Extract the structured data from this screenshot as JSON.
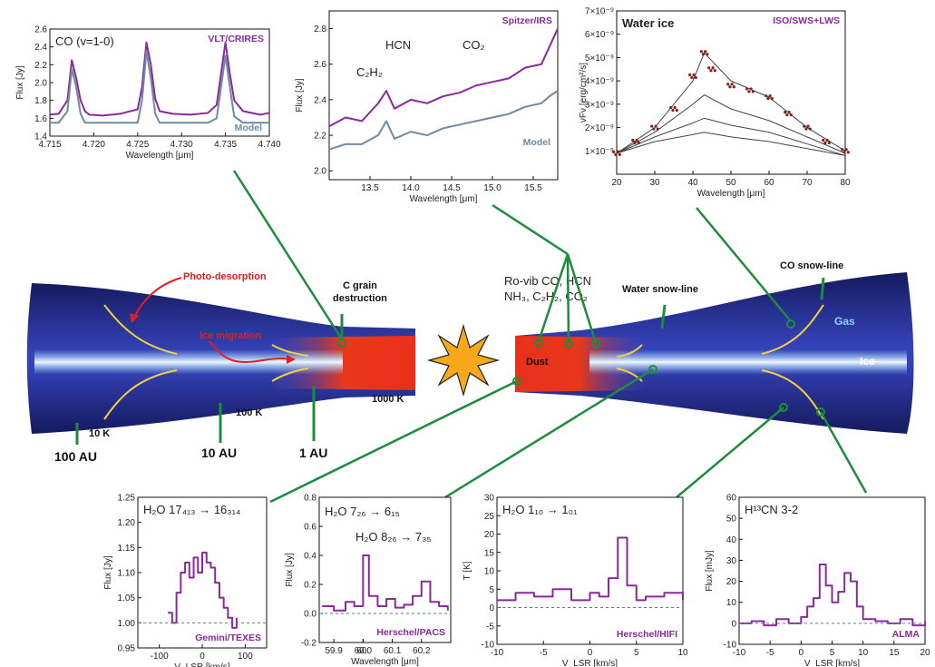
{
  "disk": {
    "annotations": {
      "photo_desorption": "Photo-desorption",
      "ice_migration": "Ice migration",
      "c_grain_1": "C grain",
      "c_grain_2": "destruction",
      "rovib_1": "Ro-vib CO, HCN",
      "rovib_2": "NH₃, C₂H₂, CO₂",
      "water_snowline": "Water snow-line",
      "co_snowline": "CO snow-line",
      "gas": "Gas",
      "ice": "Ice",
      "dust": "Dust",
      "t10": "10 K",
      "t100": "100 K",
      "t1000": "1000 K",
      "au100": "100 AU",
      "au10": "10 AU",
      "au1": "1 AU"
    },
    "colors": {
      "disk_dark": "#1b1f6e",
      "disk_mid": "#2f3bb0",
      "ice_core": "#d8f0ff",
      "inner_hot": "#e8301a",
      "inner_warm": "#ffb020",
      "snowline": "#f0d040",
      "connector": "#1e8c3c",
      "spectrum": "#8a2a9a",
      "model": "#6f8aa3"
    }
  },
  "chart_data": [
    {
      "type": "line",
      "title": "CO (v=1-0)",
      "instrument": "VLT/CRIRES",
      "model_label": "Model",
      "xlabel": "Wavelength [μm]",
      "ylabel": "Flux [Jy]",
      "xlim": [
        4.715,
        4.74
      ],
      "ylim": [
        1.4,
        2.6
      ],
      "xticks": [
        "4.715",
        "4.720",
        "4.725",
        "4.730",
        "4.735",
        "4.740"
      ],
      "yticks": [
        "1.4",
        "1.6",
        "1.8",
        "2.0",
        "2.2",
        "2.4",
        "2.6"
      ],
      "series": [
        {
          "name": "VLT/CRIRES",
          "x": [
            4.715,
            4.716,
            4.717,
            4.7175,
            4.718,
            4.7185,
            4.719,
            4.7195,
            4.721,
            4.723,
            4.725,
            4.7255,
            4.726,
            4.7265,
            4.727,
            4.7275,
            4.729,
            4.731,
            4.733,
            4.734,
            4.7345,
            4.735,
            4.7355,
            4.736,
            4.737,
            4.739,
            4.74
          ],
          "y": [
            1.64,
            1.65,
            1.8,
            2.25,
            2.05,
            1.8,
            1.68,
            1.64,
            1.63,
            1.65,
            1.7,
            1.95,
            2.45,
            2.2,
            1.82,
            1.68,
            1.65,
            1.64,
            1.66,
            1.75,
            2.1,
            2.45,
            2.1,
            1.8,
            1.68,
            1.64,
            1.66
          ]
        },
        {
          "name": "Model",
          "x": [
            4.715,
            4.716,
            4.717,
            4.7175,
            4.718,
            4.7185,
            4.719,
            4.7195,
            4.721,
            4.723,
            4.725,
            4.7255,
            4.726,
            4.7265,
            4.727,
            4.7275,
            4.729,
            4.731,
            4.733,
            4.734,
            4.7345,
            4.735,
            4.7355,
            4.736,
            4.737,
            4.739,
            4.74
          ],
          "y": [
            1.55,
            1.55,
            1.68,
            2.15,
            1.95,
            1.65,
            1.55,
            1.55,
            1.55,
            1.55,
            1.55,
            1.8,
            2.35,
            2.05,
            1.65,
            1.55,
            1.55,
            1.55,
            1.55,
            1.6,
            1.95,
            2.3,
            1.95,
            1.62,
            1.55,
            1.55,
            1.55
          ]
        }
      ]
    },
    {
      "type": "line",
      "instrument": "Spitzer/IRS",
      "model_label": "Model",
      "labels": [
        "HCN",
        "CO₂",
        "C₂H₂"
      ],
      "xlabel": "Wavelength [μm]",
      "ylabel": "Flux [Jy]",
      "xlim": [
        13.0,
        15.8
      ],
      "ylim": [
        1.95,
        2.9
      ],
      "xticks": [
        "13.5",
        "14.0",
        "14.5",
        "15.0",
        "15.5"
      ],
      "yticks": [
        "2.0",
        "2.2",
        "2.4",
        "2.6",
        "2.8"
      ],
      "series": [
        {
          "name": "Spitzer/IRS",
          "x": [
            13.0,
            13.2,
            13.4,
            13.6,
            13.7,
            13.8,
            14.0,
            14.2,
            14.4,
            14.6,
            14.8,
            15.0,
            15.2,
            15.4,
            15.6,
            15.7,
            15.8
          ],
          "y": [
            2.25,
            2.3,
            2.28,
            2.38,
            2.45,
            2.35,
            2.4,
            2.38,
            2.42,
            2.44,
            2.48,
            2.5,
            2.52,
            2.58,
            2.6,
            2.7,
            2.8
          ]
        },
        {
          "name": "Model",
          "x": [
            13.0,
            13.2,
            13.4,
            13.6,
            13.7,
            13.8,
            14.0,
            14.2,
            14.4,
            14.6,
            14.8,
            15.0,
            15.2,
            15.4,
            15.6,
            15.7,
            15.8
          ],
          "y": [
            2.12,
            2.15,
            2.15,
            2.2,
            2.28,
            2.18,
            2.22,
            2.2,
            2.24,
            2.26,
            2.28,
            2.3,
            2.32,
            2.36,
            2.38,
            2.42,
            2.45
          ]
        }
      ]
    },
    {
      "type": "scatter",
      "title": "Water ice",
      "instrument": "ISO/SWS+LWS",
      "xlabel": "Wavelength [μm]",
      "ylabel": "νFν [erg/cm²/s]",
      "xlim": [
        20,
        80
      ],
      "ylim": [
        0,
        7
      ],
      "xticks": [
        "20",
        "30",
        "40",
        "50",
        "60",
        "70",
        "80"
      ],
      "yticks": [
        "1×10⁻⁹",
        "2×10⁻⁹",
        "3×10⁻⁹",
        "4×10⁻⁹",
        "5×10⁻⁹",
        "6×10⁻⁹",
        "7×10⁻⁹"
      ],
      "series": [
        {
          "name": "data",
          "x": [
            20,
            25,
            30,
            35,
            40,
            43,
            45,
            50,
            55,
            60,
            65,
            70,
            75,
            80
          ],
          "y": [
            0.9,
            1.4,
            2.0,
            2.8,
            4.2,
            5.2,
            4.5,
            3.8,
            3.6,
            3.3,
            2.6,
            2.0,
            1.4,
            1.0
          ]
        },
        {
          "name": "model1",
          "x": [
            20,
            30,
            40,
            43,
            50,
            60,
            70,
            80
          ],
          "y": [
            0.9,
            2.0,
            4.0,
            5.2,
            4.0,
            3.3,
            2.0,
            1.0
          ]
        },
        {
          "name": "model2",
          "x": [
            20,
            30,
            40,
            43,
            50,
            60,
            70,
            80
          ],
          "y": [
            0.9,
            1.8,
            3.0,
            3.4,
            2.8,
            2.3,
            1.6,
            0.9
          ]
        },
        {
          "name": "model3",
          "x": [
            20,
            30,
            40,
            43,
            50,
            60,
            70,
            80
          ],
          "y": [
            0.9,
            1.6,
            2.2,
            2.4,
            2.1,
            1.8,
            1.3,
            0.8
          ]
        },
        {
          "name": "model4",
          "x": [
            20,
            30,
            40,
            43,
            50,
            60,
            70,
            80
          ],
          "y": [
            0.9,
            1.4,
            1.7,
            1.8,
            1.6,
            1.4,
            1.1,
            0.8
          ]
        }
      ]
    },
    {
      "type": "line",
      "title": "H₂O 17₄₁₃ → 16₃₁₄",
      "instrument": "Gemini/TEXES",
      "xlabel": "V_LSR [km/s]",
      "ylabel": "Flux [Jy]",
      "xlim": [
        -150,
        150
      ],
      "ylim": [
        0.95,
        1.25
      ],
      "xticks": [
        "-100",
        "0",
        "100"
      ],
      "yticks": [
        "0.95",
        "1.00",
        "1.05",
        "1.10",
        "1.15",
        "1.20",
        "1.25"
      ],
      "series": [
        {
          "name": "Gemini/TEXES",
          "x": [
            -80,
            -70,
            -60,
            -50,
            -40,
            -30,
            -20,
            -10,
            0,
            10,
            20,
            30,
            40,
            50,
            60,
            70,
            80
          ],
          "y": [
            1.02,
            1.0,
            1.06,
            1.1,
            1.12,
            1.09,
            1.13,
            1.1,
            1.14,
            1.12,
            1.11,
            1.08,
            1.05,
            1.03,
            1.01,
            0.99,
            1.01
          ]
        }
      ]
    },
    {
      "type": "line",
      "labels": [
        "H₂O 7₂₆ → 6₁₅",
        "H₂O 8₂₆ → 7₃₅"
      ],
      "instrument": "Herschel/PACS",
      "xlabel": "Wavelength [μm]",
      "ylabel": "Flux [Jy]",
      "xlim": [
        59.85,
        60.3
      ],
      "ylim": [
        -0.2,
        0.8
      ],
      "xticks": [
        "59.9",
        "60.0",
        "60.1",
        "60.2",
        "60."
      ],
      "yticks": [
        "-0.2",
        "0.0",
        "0.2",
        "0.4",
        "0.6",
        "0.8"
      ],
      "series": [
        {
          "name": "Herschel/PACS",
          "x": [
            59.86,
            59.9,
            59.94,
            59.97,
            60.0,
            60.02,
            60.05,
            60.08,
            60.11,
            60.14,
            60.17,
            60.2,
            60.23,
            60.26,
            60.29
          ],
          "y": [
            0.05,
            0.02,
            0.08,
            0.05,
            0.4,
            0.12,
            0.05,
            0.1,
            0.04,
            0.06,
            0.12,
            0.22,
            0.08,
            0.05,
            0.02
          ]
        }
      ]
    },
    {
      "type": "line",
      "title": "H₂O 1₁₀ → 1₀₁",
      "instrument": "Herschel/HIFI",
      "xlabel": "V_LSR [km/s]",
      "ylabel": "T [K]",
      "xlim": [
        -10,
        10
      ],
      "ylim": [
        -10,
        30
      ],
      "xticks": [
        "-10",
        "-5",
        "0",
        "5",
        "10"
      ],
      "yticks": [
        "-10",
        "-5",
        "0",
        "5",
        "10",
        "15",
        "20",
        "25",
        "30"
      ],
      "series": [
        {
          "name": "Herschel/HIFI",
          "x": [
            -10,
            -8,
            -6,
            -4,
            -2,
            0,
            1,
            2,
            3,
            4,
            5,
            6,
            8,
            10
          ],
          "y": [
            2,
            4,
            3,
            5,
            2,
            4,
            3,
            8,
            19,
            6,
            2,
            3,
            4,
            2
          ]
        }
      ]
    },
    {
      "type": "line",
      "title": "H¹³CN 3-2",
      "instrument": "ALMA",
      "xlabel": "V_LSR [km/s]",
      "ylabel": "Flux [mJy]",
      "xlim": [
        -10,
        20
      ],
      "ylim": [
        -10,
        60
      ],
      "xticks": [
        "-10",
        "-5",
        "0",
        "5",
        "10",
        "15",
        "20"
      ],
      "yticks": [
        "-10",
        "0",
        "10",
        "20",
        "30",
        "40",
        "50",
        "60"
      ],
      "series": [
        {
          "name": "ALMA",
          "x": [
            -10,
            -8,
            -6,
            -4,
            -2,
            0,
            1,
            2,
            3,
            4,
            5,
            6,
            7,
            8,
            9,
            10,
            12,
            14,
            16,
            18,
            20
          ],
          "y": [
            0,
            1,
            -1,
            2,
            0,
            3,
            8,
            12,
            28,
            18,
            10,
            15,
            24,
            20,
            8,
            2,
            1,
            0,
            2,
            -1,
            1
          ]
        }
      ]
    }
  ]
}
